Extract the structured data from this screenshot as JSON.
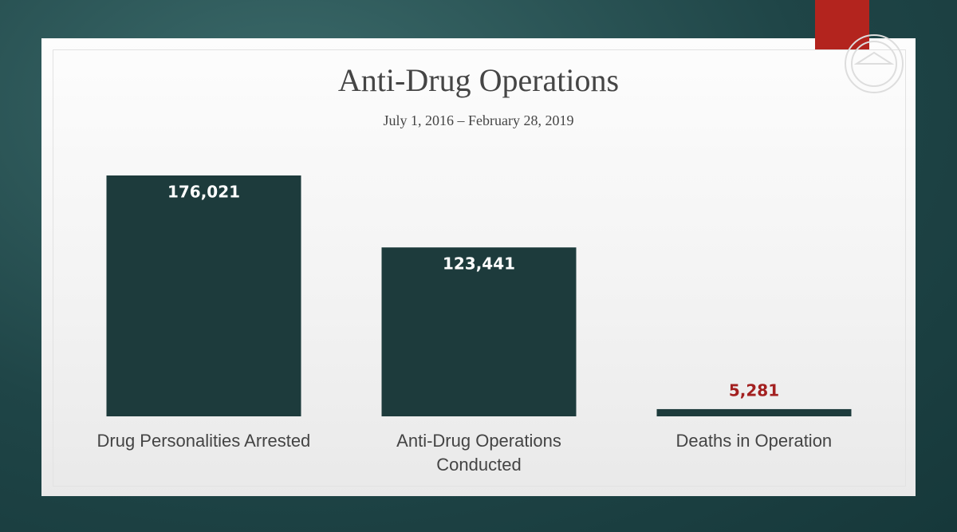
{
  "chart_data": {
    "type": "bar",
    "title": "Anti-Drug Operations",
    "subtitle": "July 1, 2016 – February 28, 2019",
    "categories": [
      "Drug Personalities Arrested",
      "Anti-Drug Operations Conducted",
      "Deaths in Operation"
    ],
    "values": [
      176021,
      123441,
      5281
    ],
    "value_labels": [
      "176,021",
      "123,441",
      "5,281"
    ],
    "color": "#1d3b3c",
    "value_label_colors": [
      "#ffffff",
      "#ffffff",
      "#a32020"
    ]
  }
}
